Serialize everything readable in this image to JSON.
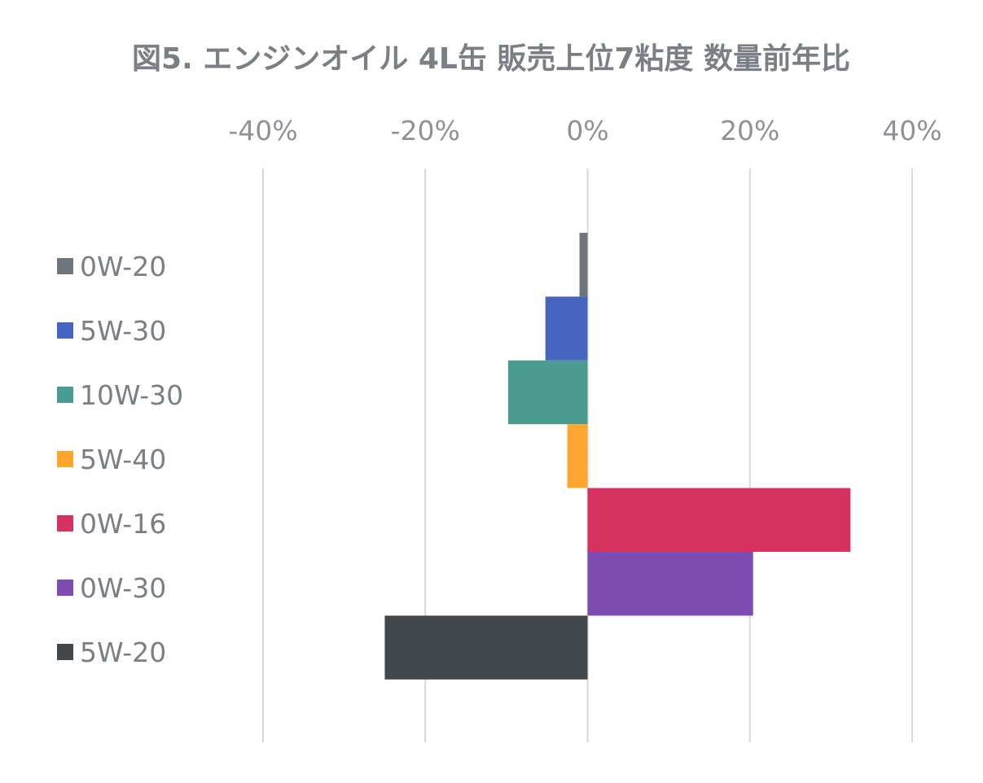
{
  "chart_data": {
    "type": "bar",
    "orientation": "horizontal",
    "title": "図5. エンジンオイル 4L缶 販売上位7粘度 数量前年比",
    "categories": [
      "0W-20",
      "5W-30",
      "10W-30",
      "5W-40",
      "0W-16",
      "0W-30",
      "5W-20"
    ],
    "values": [
      -1.0,
      -5.2,
      -9.8,
      -2.5,
      32.4,
      20.4,
      -25.0
    ],
    "unit": "%",
    "colors": [
      "#6e757c",
      "#4565c0",
      "#4a9b90",
      "#ffa630",
      "#d6325f",
      "#7d4cb0",
      "#43484c"
    ],
    "xlim": [
      -40,
      40
    ],
    "xticks": [
      -40,
      -20,
      0,
      20,
      40
    ],
    "xtick_labels": [
      "-40%",
      "-20%",
      "0%",
      "20%",
      "40%"
    ],
    "xaxis_position": "top",
    "grid": true,
    "legend": {
      "placement": "left",
      "entries": [
        "0W-20",
        "5W-30",
        "10W-30",
        "5W-40",
        "0W-16",
        "0W-30",
        "5W-20"
      ]
    }
  }
}
